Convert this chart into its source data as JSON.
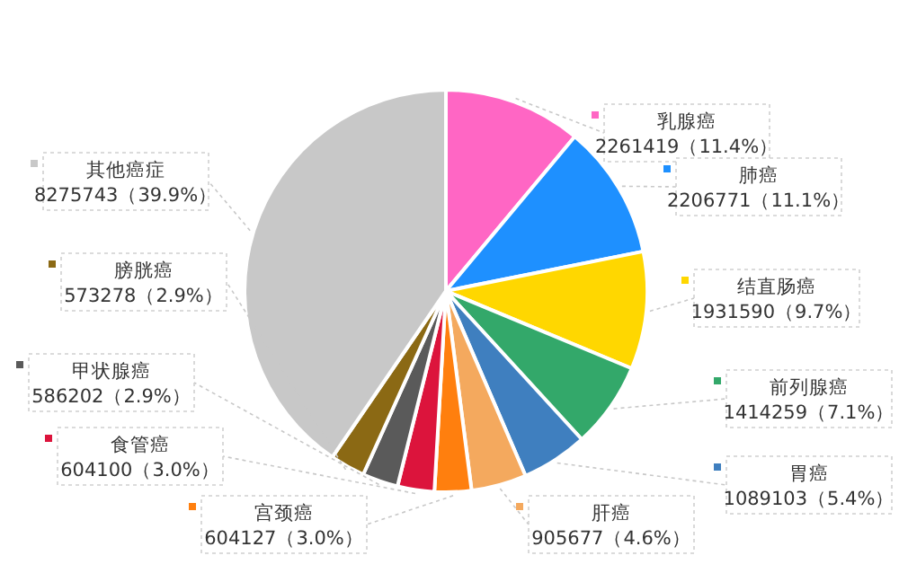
{
  "chart_data": {
    "type": "pie",
    "categories": [
      "乳腺癌",
      "肺癌",
      "结直肠癌",
      "前列腺癌",
      "胃癌",
      "肝癌",
      "宫颈癌",
      "食管癌",
      "甲状腺癌",
      "膀胱癌",
      "其他癌症"
    ],
    "values": [
      2261419,
      2206771,
      1931590,
      1414259,
      1089103,
      905677,
      604127,
      604100,
      586202,
      573278,
      8275743
    ],
    "value_labels": [
      "2261419（11.4%）",
      "2206771（11.1%）",
      "1931590（9.7%）",
      "1414259（7.1%）",
      "1089103（5.4%）",
      "905677（4.6%）",
      "604127（3.0%）",
      "604100（3.0%）",
      "586202（2.9%）",
      "573278（2.9%）",
      "8275743（39.9%）"
    ],
    "colors": [
      "#ff66c4",
      "#1e90ff",
      "#ffd700",
      "#33a86a",
      "#3f7fbf",
      "#f4a95e",
      "#ff7f0e",
      "#dc143c",
      "#5a5a5a",
      "#8b6914",
      "#c8c8c8"
    ]
  }
}
